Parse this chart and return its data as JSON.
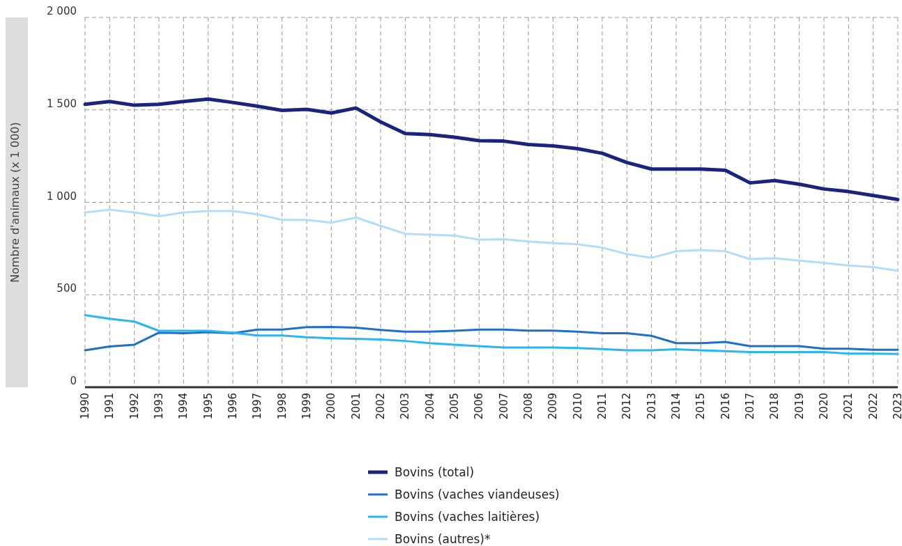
{
  "chart_data": {
    "type": "line",
    "ylabel": "Nombre d'animaux (x 1 000)",
    "categories": [
      "1990",
      "1991",
      "1992",
      "1993",
      "1994",
      "1995",
      "1996",
      "1997",
      "1998",
      "1999",
      "2000",
      "2001",
      "2002",
      "2003",
      "2004",
      "2005",
      "2006",
      "2007",
      "2008",
      "2009",
      "2010",
      "2011",
      "2012",
      "2013",
      "2014",
      "2015",
      "2016",
      "2017",
      "2018",
      "2019",
      "2020",
      "2021",
      "2022",
      "2023"
    ],
    "ylim": [
      0,
      2000
    ],
    "yticks": [
      {
        "value": 0,
        "label": "0"
      },
      {
        "value": 500,
        "label": "500"
      },
      {
        "value": 1000,
        "label": "1 000"
      },
      {
        "value": 1500,
        "label": "1 500"
      },
      {
        "value": 2000,
        "label": "2 000"
      }
    ],
    "grid": true,
    "legend": "bottom",
    "line_style": "solid",
    "marker": "none",
    "series": [
      {
        "name": "Bovins (total)",
        "color": "#1a237e",
        "values": [
          1530,
          1545,
          1525,
          1530,
          1545,
          1558,
          1540,
          1520,
          1497,
          1503,
          1483,
          1510,
          1435,
          1372,
          1366,
          1352,
          1333,
          1331,
          1313,
          1305,
          1290,
          1265,
          1215,
          1180,
          1180,
          1180,
          1173,
          1105,
          1118,
          1098,
          1072,
          1058,
          1037,
          1015
        ]
      },
      {
        "name": "Bovins (vaches viandeuses)",
        "color": "#1e6fcc",
        "values": [
          200,
          220,
          230,
          295,
          292,
          298,
          292,
          312,
          312,
          325,
          326,
          322,
          310,
          300,
          300,
          305,
          312,
          312,
          306,
          306,
          300,
          292,
          292,
          278,
          238,
          238,
          245,
          222,
          222,
          222,
          208,
          208,
          202,
          202
        ]
      },
      {
        "name": "Bovins (vaches laitières)",
        "color": "#29b6f6",
        "values": [
          390,
          370,
          355,
          305,
          305,
          305,
          295,
          280,
          280,
          270,
          265,
          262,
          258,
          250,
          238,
          230,
          222,
          215,
          215,
          215,
          212,
          206,
          200,
          200,
          205,
          200,
          195,
          190,
          190,
          190,
          190,
          182,
          182,
          180
        ]
      },
      {
        "name": "Bovins (autres)*",
        "color": "#b3dcfa",
        "values": [
          945,
          960,
          945,
          925,
          945,
          953,
          953,
          935,
          905,
          905,
          890,
          918,
          873,
          830,
          825,
          820,
          798,
          800,
          788,
          780,
          773,
          755,
          720,
          700,
          735,
          742,
          735,
          693,
          698,
          685,
          672,
          658,
          650,
          630
        ]
      }
    ]
  }
}
